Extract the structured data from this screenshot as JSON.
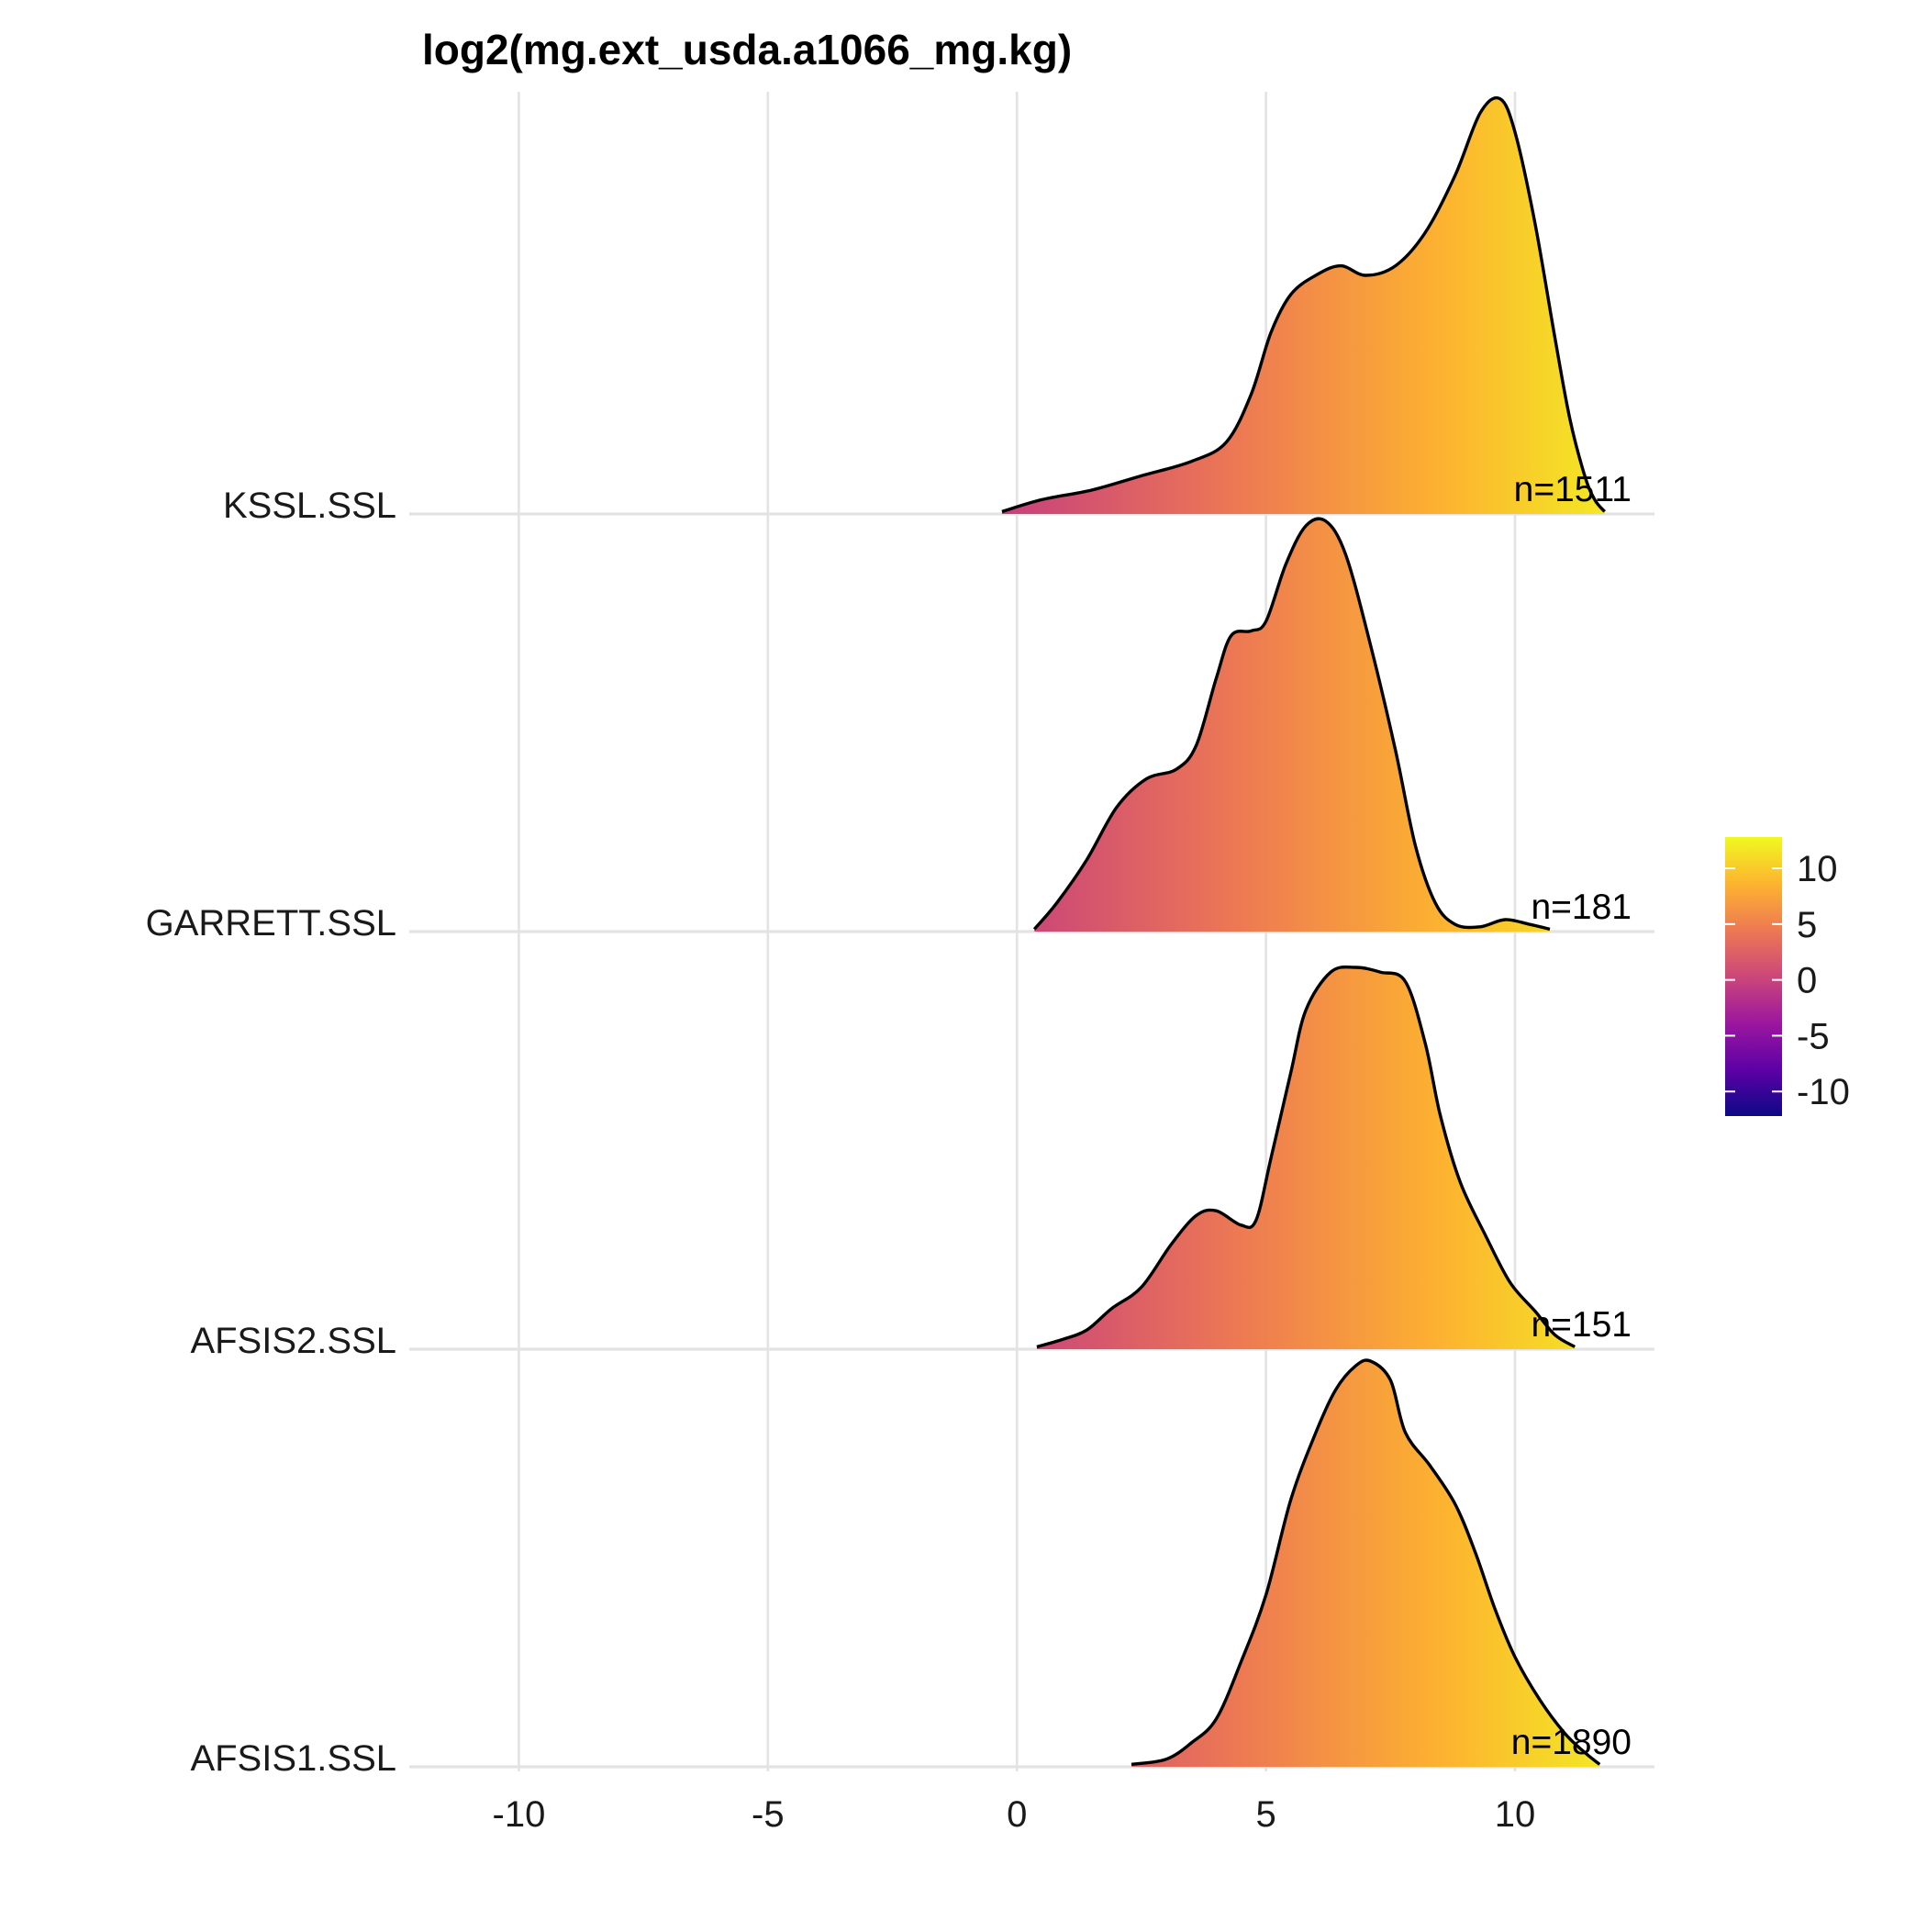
{
  "chart_data": {
    "type": "ridgeline",
    "title": "log2(mg.ext_usda.a1066_mg.kg)",
    "xlabel": "",
    "ylabel": "",
    "xlim": [
      -12.2,
      12.8
    ],
    "x_ticks": [
      -10,
      -5,
      0,
      5,
      10
    ],
    "x_tick_labels": [
      "-10",
      "-5",
      "0",
      "5",
      "10"
    ],
    "grid": true,
    "colorbar": {
      "position": "right",
      "range": [
        -12.2,
        12.8
      ],
      "ticks": [
        10,
        5,
        0,
        -5,
        -10
      ],
      "tick_labels": [
        "10",
        "5",
        "0",
        "-5",
        "-10"
      ],
      "palette": "plasma",
      "stops": [
        "#0d0887",
        "#5d01a6",
        "#9c179e",
        "#cc4778",
        "#ed7953",
        "#fdb42f",
        "#f0f921"
      ]
    },
    "series": [
      {
        "name": "KSSL.SSL",
        "n_label": "n=1511",
        "density": [
          [
            -0.3,
            0.005
          ],
          [
            0.5,
            0.03
          ],
          [
            1.5,
            0.05
          ],
          [
            2.5,
            0.08
          ],
          [
            3.5,
            0.11
          ],
          [
            4.2,
            0.15
          ],
          [
            4.7,
            0.25
          ],
          [
            5.1,
            0.38
          ],
          [
            5.5,
            0.46
          ],
          [
            6.0,
            0.5
          ],
          [
            6.5,
            0.52
          ],
          [
            7.0,
            0.5
          ],
          [
            7.6,
            0.52
          ],
          [
            8.2,
            0.59
          ],
          [
            8.8,
            0.71
          ],
          [
            9.3,
            0.84
          ],
          [
            9.7,
            0.87
          ],
          [
            10.0,
            0.8
          ],
          [
            10.4,
            0.61
          ],
          [
            10.8,
            0.37
          ],
          [
            11.1,
            0.2
          ],
          [
            11.4,
            0.08
          ],
          [
            11.6,
            0.03
          ],
          [
            11.8,
            0.005
          ]
        ]
      },
      {
        "name": "GARRETT.SSL",
        "n_label": "n=181",
        "density": [
          [
            0.35,
            0.005
          ],
          [
            0.8,
            0.06
          ],
          [
            1.4,
            0.15
          ],
          [
            2.0,
            0.26
          ],
          [
            2.6,
            0.32
          ],
          [
            3.2,
            0.34
          ],
          [
            3.6,
            0.39
          ],
          [
            4.0,
            0.53
          ],
          [
            4.3,
            0.62
          ],
          [
            4.7,
            0.63
          ],
          [
            5.0,
            0.65
          ],
          [
            5.4,
            0.77
          ],
          [
            5.8,
            0.85
          ],
          [
            6.2,
            0.86
          ],
          [
            6.6,
            0.79
          ],
          [
            7.1,
            0.6
          ],
          [
            7.6,
            0.38
          ],
          [
            8.0,
            0.18
          ],
          [
            8.4,
            0.06
          ],
          [
            8.8,
            0.015
          ],
          [
            9.3,
            0.01
          ],
          [
            9.8,
            0.025
          ],
          [
            10.3,
            0.015
          ],
          [
            10.7,
            0.005
          ]
        ]
      },
      {
        "name": "AFSIS2.SSL",
        "n_label": "n=151",
        "density": [
          [
            0.4,
            0.005
          ],
          [
            0.9,
            0.02
          ],
          [
            1.4,
            0.04
          ],
          [
            1.9,
            0.085
          ],
          [
            2.5,
            0.13
          ],
          [
            3.1,
            0.22
          ],
          [
            3.6,
            0.28
          ],
          [
            4.0,
            0.29
          ],
          [
            4.5,
            0.26
          ],
          [
            4.8,
            0.27
          ],
          [
            5.1,
            0.4
          ],
          [
            5.5,
            0.58
          ],
          [
            5.8,
            0.71
          ],
          [
            6.3,
            0.79
          ],
          [
            6.8,
            0.8
          ],
          [
            7.3,
            0.79
          ],
          [
            7.8,
            0.77
          ],
          [
            8.2,
            0.64
          ],
          [
            8.5,
            0.49
          ],
          [
            8.9,
            0.35
          ],
          [
            9.4,
            0.24
          ],
          [
            9.9,
            0.14
          ],
          [
            10.4,
            0.08
          ],
          [
            10.8,
            0.03
          ],
          [
            11.2,
            0.005
          ]
        ]
      },
      {
        "name": "AFSIS1.SSL",
        "n_label": "n=1890",
        "density": [
          [
            2.3,
            0.005
          ],
          [
            3.0,
            0.016
          ],
          [
            3.5,
            0.05
          ],
          [
            4.0,
            0.1
          ],
          [
            4.5,
            0.22
          ],
          [
            5.0,
            0.36
          ],
          [
            5.5,
            0.56
          ],
          [
            6.0,
            0.7
          ],
          [
            6.4,
            0.79
          ],
          [
            6.8,
            0.84
          ],
          [
            7.1,
            0.85
          ],
          [
            7.5,
            0.81
          ],
          [
            7.8,
            0.7
          ],
          [
            8.3,
            0.63
          ],
          [
            8.8,
            0.55
          ],
          [
            9.2,
            0.45
          ],
          [
            9.6,
            0.33
          ],
          [
            10.0,
            0.23
          ],
          [
            10.5,
            0.14
          ],
          [
            11.0,
            0.07
          ],
          [
            11.4,
            0.03
          ],
          [
            11.7,
            0.005
          ]
        ]
      }
    ]
  }
}
